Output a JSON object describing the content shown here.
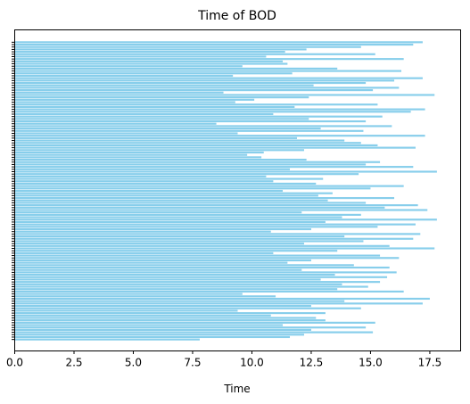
{
  "chart_data": {
    "type": "bar",
    "orientation": "horizontal",
    "title": "Time of BOD",
    "xlabel": "Time",
    "ylabel": "",
    "xlim": [
      0,
      18.8
    ],
    "xticks": [
      "0.0",
      "2.5",
      "5.0",
      "7.5",
      "10.0",
      "12.5",
      "15.0",
      "17.5"
    ],
    "grid": false,
    "legend": "none",
    "bar_color": "#87ceeb",
    "y_tick_color": "#000000",
    "values": [
      17.2,
      16.8,
      14.6,
      12.3,
      11.4,
      15.2,
      10.6,
      16.4,
      11.3,
      11.5,
      9.6,
      13.6,
      16.3,
      11.7,
      9.2,
      17.2,
      16.0,
      14.8,
      12.6,
      16.2,
      15.1,
      8.8,
      17.7,
      12.4,
      10.1,
      9.3,
      15.3,
      11.8,
      17.3,
      16.7,
      10.9,
      15.5,
      12.4,
      14.8,
      8.5,
      15.9,
      12.9,
      14.7,
      9.4,
      17.3,
      11.9,
      13.9,
      14.6,
      15.3,
      16.9,
      12.2,
      10.5,
      9.8,
      10.4,
      12.3,
      15.4,
      14.8,
      16.8,
      11.6,
      17.8,
      14.5,
      10.6,
      13.0,
      10.9,
      12.7,
      16.4,
      15.0,
      11.3,
      13.4,
      12.8,
      16.0,
      13.2,
      14.8,
      17.0,
      15.6,
      17.4,
      12.1,
      14.6,
      13.8,
      17.8,
      13.1,
      16.9,
      15.3,
      12.5,
      10.8,
      17.1,
      13.9,
      16.8,
      14.7,
      12.2,
      15.8,
      17.7,
      13.6,
      10.9,
      15.4,
      16.2,
      12.5,
      11.5,
      14.3,
      15.8,
      12.1,
      16.1,
      13.5,
      15.7,
      12.9,
      15.4,
      13.8,
      14.9,
      13.6,
      16.4,
      9.6,
      11.0,
      17.5,
      13.9,
      17.2,
      12.5,
      14.6,
      9.4,
      13.1,
      10.8,
      12.7,
      13.1,
      15.2,
      11.3,
      14.8,
      12.5,
      15.1,
      12.2,
      11.6,
      7.8
    ]
  }
}
